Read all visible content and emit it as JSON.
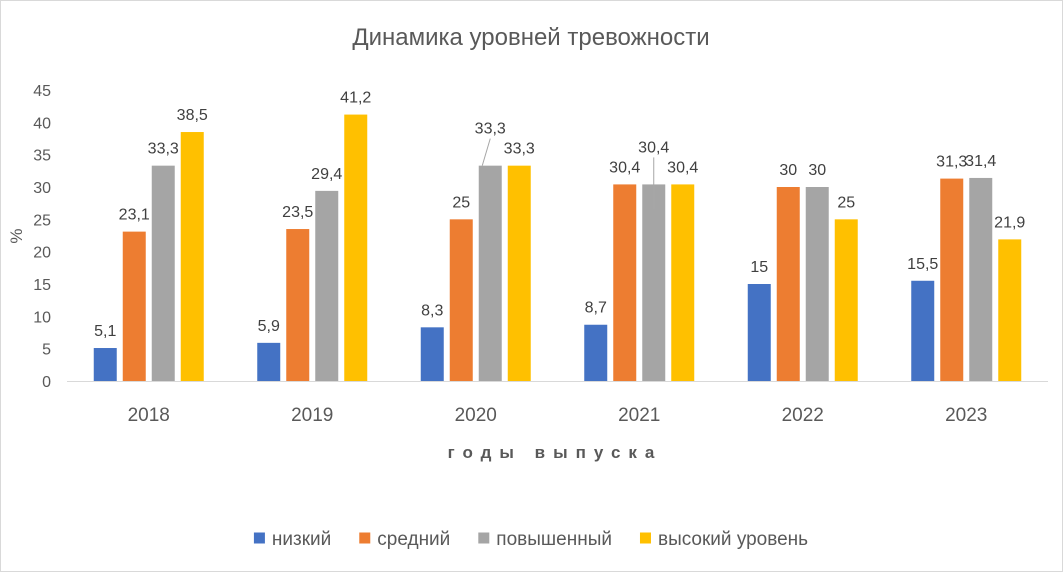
{
  "chart_data": {
    "type": "bar",
    "title": "Динамика уровней тревожности",
    "xlabel": "годы выпуска",
    "ylabel": "%",
    "ylim": [
      0,
      45
    ],
    "yticks": [
      "0",
      "5",
      "10",
      "15",
      "20",
      "25",
      "30",
      "35",
      "40",
      "45"
    ],
    "categories": [
      "2018",
      "2019",
      "2020",
      "2021",
      "2022",
      "2023"
    ],
    "grid": false,
    "legend_position": "bottom",
    "series": [
      {
        "name": "низкий",
        "color": "#4472C4",
        "values": [
          5.1,
          5.9,
          8.3,
          8.7,
          15,
          15.5
        ],
        "labels": [
          "5,1",
          "5,9",
          "8,3",
          "8,7",
          "15",
          "15,5"
        ]
      },
      {
        "name": "средний",
        "color": "#ED7D31",
        "values": [
          23.1,
          23.5,
          25,
          30.4,
          30,
          31.3
        ],
        "labels": [
          "23,1",
          "23,5",
          "25",
          "30,4",
          "30",
          "31,3"
        ]
      },
      {
        "name": "повышенный",
        "color": "#A5A5A5",
        "values": [
          33.3,
          29.4,
          33.3,
          30.4,
          30,
          31.4
        ],
        "labels": [
          "33,3",
          "29,4",
          "33,3",
          "30,4",
          "30",
          "31,4"
        ]
      },
      {
        "name": "высокий уровень",
        "color": "#FFC000",
        "values": [
          38.5,
          41.2,
          33.3,
          30.4,
          25,
          21.9
        ],
        "labels": [
          "38,5",
          "41,2",
          "33,3",
          "30,4",
          "25",
          "21,9"
        ]
      }
    ]
  }
}
